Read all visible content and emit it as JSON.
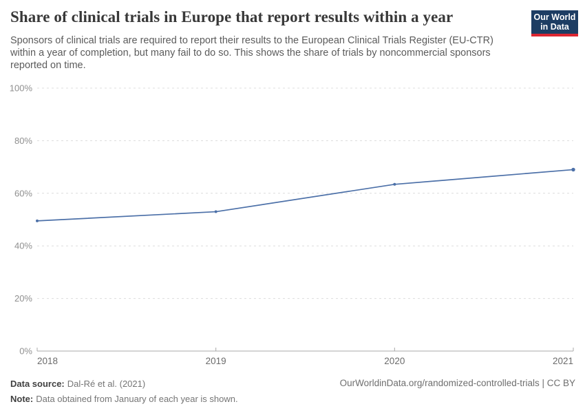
{
  "header": {
    "title": "Share of clinical trials in Europe that report results within a year",
    "subtitle_lines": [
      "Sponsors of clinical trials are required to report their results to the European Clinical Trials Register (EU-CTR)",
      "within a year of completion, but many fail to do so. This shows the share of trials by noncommercial sponsors",
      "reported on time."
    ],
    "logo": {
      "line1": "Our World",
      "line2": "in Data",
      "bg": "#1d3d63",
      "accent": "#dc2631"
    }
  },
  "chart_data": {
    "type": "line",
    "title": "Share of clinical trials in Europe that report results within a year",
    "x": [
      "2018",
      "2019",
      "2020",
      "2021"
    ],
    "series": [
      {
        "name": "Share of trials by noncommercial sponsors reported on time",
        "values": [
          49.5,
          53,
          63.4,
          69
        ],
        "color": "#4c70a8"
      }
    ],
    "ylim": [
      0,
      100
    ],
    "yticks": [
      0,
      20,
      40,
      60,
      80,
      100
    ],
    "ytick_suffix": "%",
    "grid": true,
    "legend": "none",
    "colors": {
      "gridline": "#dcdcdc",
      "axis": "#a8a8a8",
      "ytick_label": "#8f8f8f",
      "xtick_label": "#6b6b6b"
    }
  },
  "footer": {
    "source_label": "Data source:",
    "source_text": "Dal-Ré et al. (2021)",
    "note_label": "Note:",
    "note_text": "Data obtained from January of each year is shown.",
    "right_text": "OurWorldinData.org/randomized-controlled-trials | CC BY"
  }
}
